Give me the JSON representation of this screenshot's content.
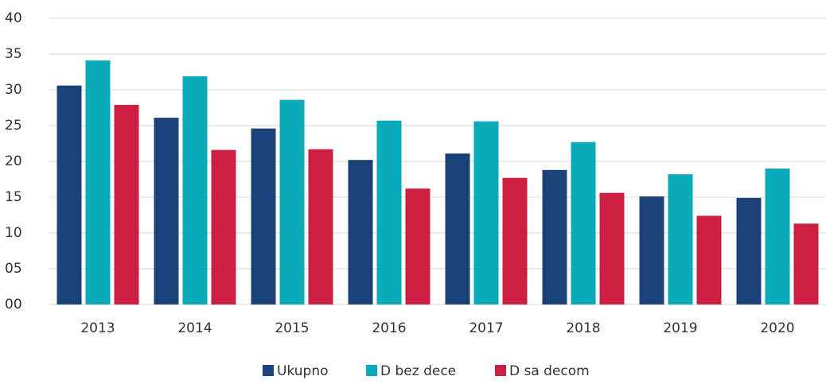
{
  "chart_data": {
    "type": "bar",
    "categories": [
      "2013",
      "2014",
      "2015",
      "2016",
      "2017",
      "2018",
      "2019",
      "2020"
    ],
    "series": [
      {
        "name": "Ukupno",
        "color": "#1a4279",
        "values": [
          30.6,
          26.1,
          24.6,
          20.2,
          21.1,
          18.8,
          15.1,
          14.9
        ]
      },
      {
        "name": "D bez dece",
        "color": "#0aabb9",
        "values": [
          34.1,
          31.9,
          28.6,
          25.7,
          25.6,
          22.7,
          18.2,
          19.0
        ]
      },
      {
        "name": "D sa decom",
        "color": "#cc1f42",
        "values": [
          27.9,
          21.6,
          21.7,
          16.2,
          17.7,
          15.6,
          12.4,
          11.3
        ]
      }
    ],
    "ylim": [
      0,
      40
    ],
    "yticks": [
      {
        "value": 0,
        "label": "00"
      },
      {
        "value": 5,
        "label": "05"
      },
      10,
      15,
      20,
      25,
      30,
      35,
      40
    ],
    "grid": true,
    "legend": "bottom"
  }
}
